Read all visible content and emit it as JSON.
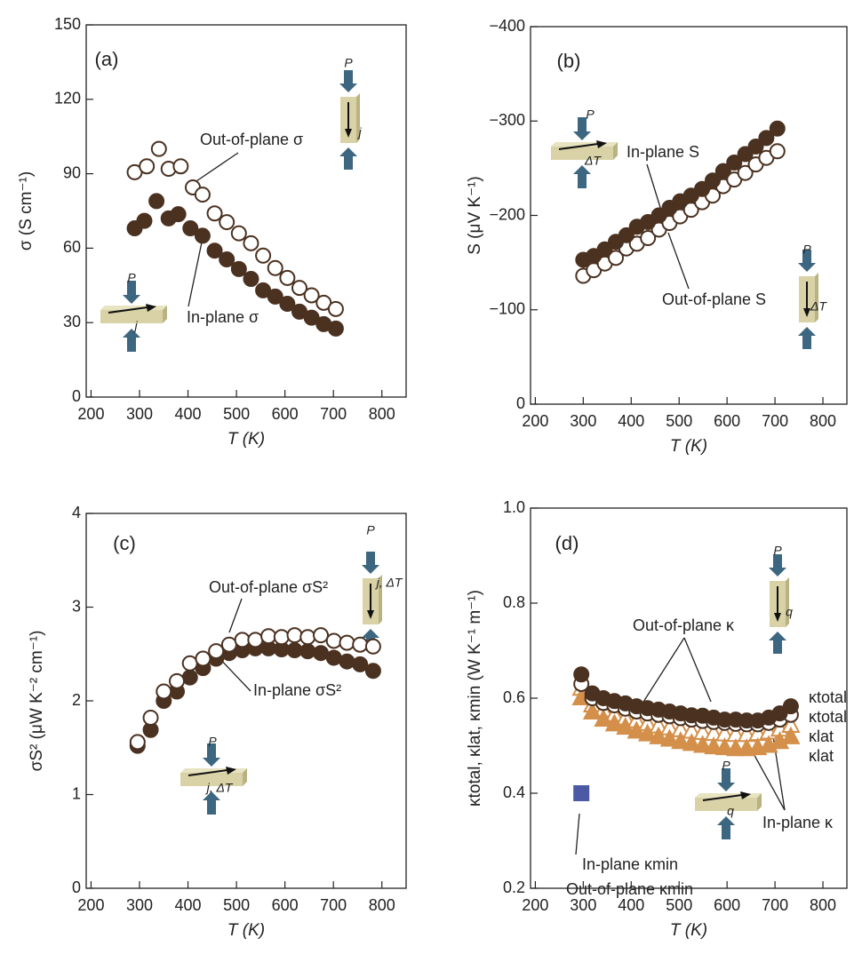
{
  "chart_data": [
    {
      "type": "scatter",
      "panel": "(a)",
      "x_label": "T (K)",
      "y_label": "σ (S cm⁻¹)",
      "xlim": [
        190,
        850
      ],
      "xticks": [
        200,
        300,
        400,
        500,
        600,
        700,
        800
      ],
      "ylim": [
        0,
        150
      ],
      "yticks": [
        0,
        30,
        60,
        90,
        120,
        150
      ],
      "annotations": [
        "P",
        "j",
        "P",
        "j"
      ],
      "series": [
        {
          "name": "Out-of-plane σ",
          "color": "#4a3120",
          "filled": false,
          "marker": "circle",
          "x": [
            290,
            315,
            340,
            360,
            385,
            410,
            430,
            455,
            480,
            505,
            530,
            555,
            580,
            605,
            630,
            655,
            680,
            705
          ],
          "values": [
            90.6,
            93,
            100,
            92,
            93,
            84.5,
            81.6,
            74,
            70.5,
            66,
            62,
            57,
            52,
            48,
            44,
            41,
            38,
            35.5
          ]
        },
        {
          "name": "In-plane σ",
          "color": "#4a3120",
          "filled": true,
          "marker": "circle",
          "x": [
            290,
            310,
            335,
            360,
            380,
            405,
            430,
            455,
            480,
            505,
            530,
            555,
            580,
            605,
            630,
            655,
            680,
            705
          ],
          "values": [
            68,
            71,
            79,
            72,
            73.7,
            68,
            65,
            59,
            55.5,
            51.6,
            47.6,
            43,
            40.5,
            37.6,
            34.4,
            32,
            29.4,
            27.6
          ]
        }
      ]
    },
    {
      "type": "scatter",
      "panel": "(b)",
      "x_label": "T (K)",
      "y_label": "S (μV K⁻¹)",
      "xlim": [
        190,
        850
      ],
      "xticks": [
        200,
        300,
        400,
        500,
        600,
        700,
        800
      ],
      "ylim": [
        0,
        -400
      ],
      "yticks": [
        0,
        {
          "value": -100,
          "label": "−100"
        },
        {
          "value": -200,
          "label": "−200"
        },
        {
          "value": -300,
          "label": "−300"
        },
        {
          "value": -400,
          "label": "−400"
        }
      ],
      "annotations": [
        "P",
        "ΔT",
        "P",
        "ΔT"
      ],
      "series": [
        {
          "name": "In-plane S",
          "color": "#4a3120",
          "filled": true,
          "marker": "circle",
          "x": [
            300,
            322,
            345,
            368,
            390,
            412,
            435,
            458,
            480,
            502,
            525,
            548,
            570,
            592,
            615,
            638,
            660,
            682,
            705
          ],
          "values": [
            -153,
            -157,
            -164,
            -172,
            -179,
            -188,
            -193,
            -200,
            -208,
            -215,
            -221,
            -228,
            -237,
            -247,
            -256,
            -265,
            -273,
            -282,
            -292
          ]
        },
        {
          "name": "Out-of-plane S",
          "color": "#4a3120",
          "filled": false,
          "marker": "circle",
          "x": [
            300,
            322,
            345,
            368,
            390,
            412,
            435,
            458,
            480,
            502,
            525,
            548,
            570,
            592,
            615,
            638,
            660,
            682,
            705
          ],
          "values": [
            -136,
            -142,
            -149,
            -155,
            -165,
            -170,
            -176,
            -185,
            -192,
            -199,
            -206,
            -214,
            -221,
            -231,
            -238,
            -245,
            -254,
            -261,
            -268
          ]
        }
      ]
    },
    {
      "type": "scatter",
      "panel": "(c)",
      "x_label": "T (K)",
      "y_label": "σS² (μW K⁻² cm⁻¹)",
      "xlim": [
        190,
        850
      ],
      "xticks": [
        200,
        300,
        400,
        500,
        600,
        700,
        800
      ],
      "ylim": [
        0,
        4
      ],
      "yticks": [
        0,
        1,
        2,
        3,
        4
      ],
      "annotations": [
        "P",
        "j, ΔT",
        "P",
        "j, ΔT"
      ],
      "series": [
        {
          "name": "Out-of-plane σS²",
          "color": "#4a3120",
          "filled": false,
          "marker": "circle",
          "x": [
            296,
            323,
            350,
            377,
            404,
            431,
            458,
            485,
            512,
            539,
            566,
            593,
            620,
            647,
            674,
            701,
            728,
            755,
            782
          ],
          "values": [
            1.56,
            1.82,
            2.1,
            2.21,
            2.4,
            2.45,
            2.53,
            2.6,
            2.65,
            2.65,
            2.69,
            2.68,
            2.7,
            2.68,
            2.7,
            2.64,
            2.62,
            2.6,
            2.58
          ]
        },
        {
          "name": "In-plane σS²",
          "color": "#4a3120",
          "filled": true,
          "marker": "circle",
          "x": [
            296,
            323,
            350,
            377,
            404,
            431,
            458,
            485,
            512,
            539,
            566,
            593,
            620,
            647,
            674,
            701,
            728,
            755,
            782
          ],
          "values": [
            1.52,
            1.69,
            2.0,
            2.1,
            2.25,
            2.35,
            2.45,
            2.51,
            2.54,
            2.56,
            2.56,
            2.55,
            2.54,
            2.53,
            2.51,
            2.46,
            2.42,
            2.39,
            2.32
          ]
        }
      ]
    },
    {
      "type": "scatter",
      "panel": "(d)",
      "x_label": "T (K)",
      "y_label": "κtotal, κlat, κmin (W K⁻¹ m⁻¹)",
      "xlim": [
        190,
        850
      ],
      "xticks": [
        200,
        300,
        400,
        500,
        600,
        700,
        800
      ],
      "ylim": [
        0.2,
        1.0
      ],
      "yticks": [
        0.2,
        0.4,
        0.6,
        0.8,
        {
          "value": 1,
          "label": "1.0"
        }
      ],
      "annotations": [
        "Out-of-plane κ",
        "In-plane κ",
        "In-plane κmin",
        "Out-of-plane κmin",
        "P",
        "q",
        "P",
        "q"
      ],
      "series": [
        {
          "name": "κtotal",
          "color": "#4a3120",
          "filled": true,
          "marker": "circle",
          "x": [
            296,
            319,
            342,
            365,
            388,
            411,
            434,
            457,
            480,
            503,
            526,
            549,
            572,
            595,
            618,
            641,
            664,
            687,
            710,
            733
          ],
          "values": [
            0.65,
            0.61,
            0.6,
            0.594,
            0.589,
            0.583,
            0.579,
            0.576,
            0.572,
            0.568,
            0.564,
            0.563,
            0.559,
            0.555,
            0.555,
            0.553,
            0.553,
            0.559,
            0.568,
            0.583
          ]
        },
        {
          "name": "κtotal",
          "color": "#4a3120",
          "filled": false,
          "marker": "circle",
          "x": [
            296,
            319,
            342,
            365,
            388,
            411,
            434,
            457,
            480,
            503,
            526,
            549,
            572,
            595,
            618,
            641,
            664,
            687,
            710,
            733
          ],
          "values": [
            0.63,
            0.6,
            0.59,
            0.585,
            0.578,
            0.572,
            0.568,
            0.565,
            0.562,
            0.558,
            0.555,
            0.552,
            0.55,
            0.548,
            0.546,
            0.545,
            0.545,
            0.548,
            0.555,
            0.565
          ]
        },
        {
          "name": "κlat",
          "color": "#d4904a",
          "filled": true,
          "marker": "triangle",
          "x": [
            296,
            319,
            342,
            365,
            388,
            411,
            434,
            457,
            480,
            503,
            526,
            549,
            572,
            595,
            618,
            641,
            664,
            687,
            710,
            733
          ],
          "values": [
            0.6,
            0.57,
            0.555,
            0.545,
            0.538,
            0.53,
            0.524,
            0.518,
            0.513,
            0.508,
            0.504,
            0.5,
            0.497,
            0.495,
            0.493,
            0.493,
            0.495,
            0.5,
            0.508,
            0.518
          ]
        },
        {
          "name": "κlat",
          "color": "#d4904a",
          "filled": false,
          "marker": "triangle",
          "x": [
            296,
            319,
            342,
            365,
            388,
            411,
            434,
            457,
            480,
            503,
            526,
            549,
            572,
            595,
            618,
            641,
            664,
            687,
            710,
            733
          ],
          "values": [
            0.62,
            0.585,
            0.575,
            0.565,
            0.558,
            0.552,
            0.546,
            0.541,
            0.537,
            0.533,
            0.53,
            0.527,
            0.525,
            0.524,
            0.523,
            0.523,
            0.525,
            0.528,
            0.534,
            0.542
          ]
        },
        {
          "color": "#4c5aa6",
          "filled": true,
          "marker": "square",
          "x": [
            296
          ],
          "values": [
            0.4
          ]
        }
      ]
    }
  ]
}
